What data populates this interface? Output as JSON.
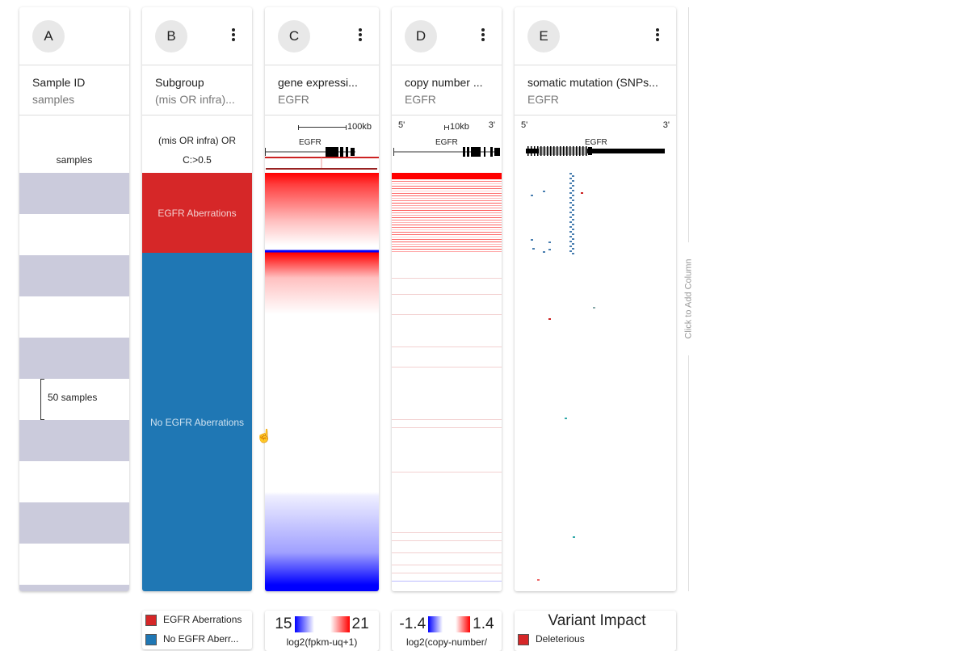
{
  "columns": [
    {
      "id": "A",
      "title": "Sample ID",
      "subtitle": "samples",
      "annotation": "samples",
      "bracket_label": "50 samples"
    },
    {
      "id": "B",
      "title": "Subgroup",
      "subtitle": "(mis OR infra)...",
      "annotation_line1": "(mis OR infra) OR",
      "annotation_line2": "C:>0.5",
      "groups": [
        {
          "label": "EGFR Aberrations",
          "color": "#d62728"
        },
        {
          "label": "No EGFR Aberrations",
          "color": "#1f77b4"
        }
      ]
    },
    {
      "id": "C",
      "title": "gene expressi...",
      "subtitle": "EGFR",
      "scale": "100kb",
      "gene": "EGFR"
    },
    {
      "id": "D",
      "title": "copy number ...",
      "subtitle": "EGFR",
      "scale": "10kb",
      "gene": "EGFR",
      "five": "5'",
      "three": "3'"
    },
    {
      "id": "E",
      "title": "somatic mutation (SNPs...",
      "subtitle": "EGFR",
      "gene": "EGFR",
      "five": "5'",
      "three": "3'"
    }
  ],
  "add_column": "Click to Add Column",
  "legends": {
    "B": [
      {
        "label": "EGFR Aberrations",
        "color": "#d62728"
      },
      {
        "label": "No EGFR Aberr...",
        "color": "#1f77b4"
      }
    ],
    "C": {
      "min": "15",
      "max": "21",
      "unit": "log2(fpkm-uq+1)"
    },
    "D": {
      "min": "-1.4",
      "max": "1.4",
      "unit": "log2(copy-number/"
    },
    "E": {
      "title": "Variant Impact",
      "items": [
        {
          "label": "Deleterious",
          "color": "#d62728"
        }
      ]
    }
  }
}
